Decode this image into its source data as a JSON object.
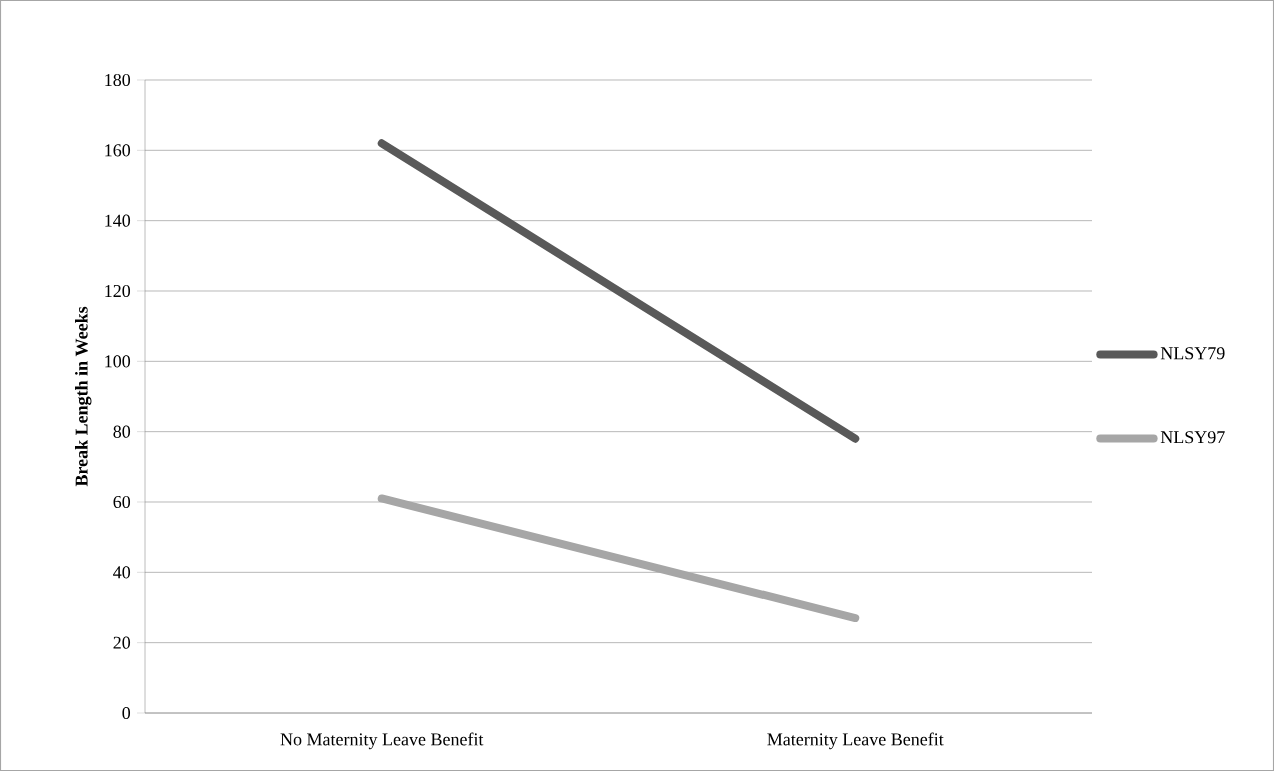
{
  "chart_data": {
    "type": "line",
    "ylabel": "**Break Length in Weeks**",
    "categories": [
      "No Maternity Leave Benefit",
      "Maternity Leave Benefit"
    ],
    "series": [
      {
        "name": "NLSY79",
        "color": "#595959",
        "values": [
          162,
          78
        ]
      },
      {
        "name": "NLSY97",
        "color": "#a6a6a6",
        "values": [
          61,
          27
        ]
      }
    ],
    "ylim": [
      0,
      180
    ],
    "yticks": [
      0,
      20,
      40,
      60,
      80,
      100,
      120,
      140,
      160,
      180
    ],
    "grid": "y",
    "legend": "right"
  }
}
